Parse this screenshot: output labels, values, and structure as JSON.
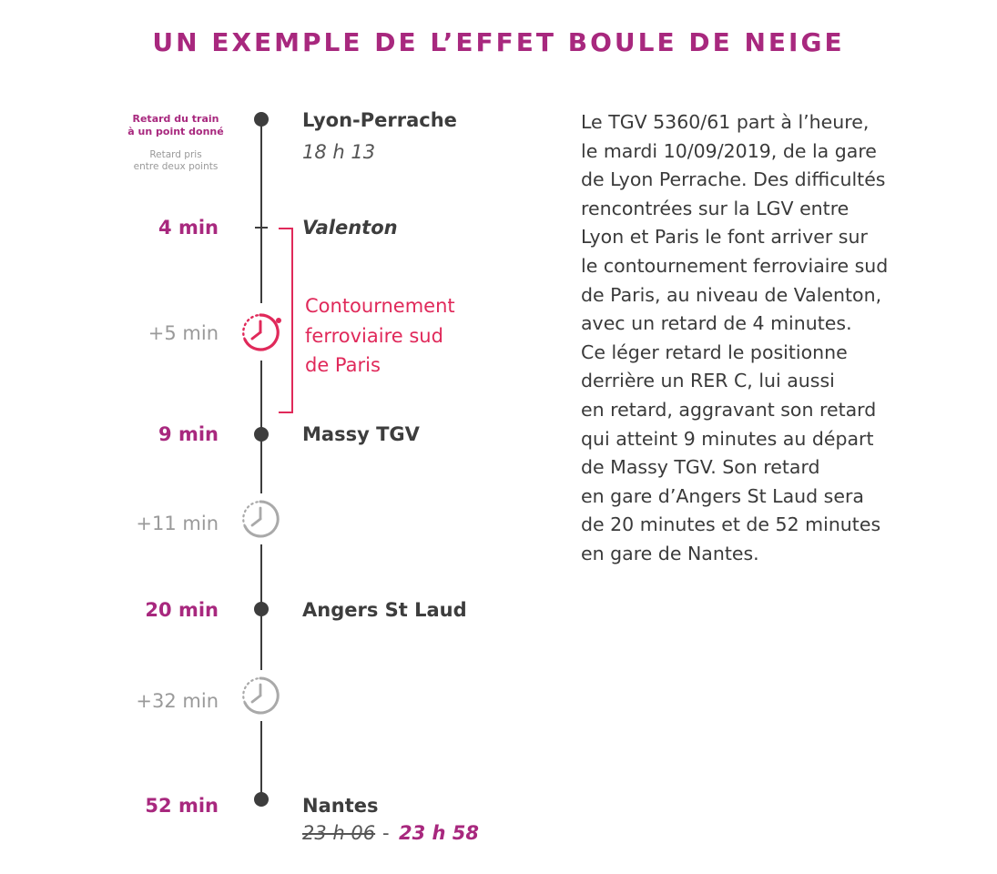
{
  "title": "UN EXEMPLE DE L’EFFET BOULE DE NEIGE",
  "legend": {
    "point_delay_line1": "Retard du train",
    "point_delay_line2": "à un point donné",
    "between_delay_line1": "Retard pris",
    "between_delay_line2": "entre deux points"
  },
  "stops": {
    "lyon": {
      "name": "Lyon-Perrache",
      "time": "18 h 13"
    },
    "valenton": {
      "name": "Valenton",
      "delay": "4 min"
    },
    "segment_paris": {
      "label_line1": "Contournement",
      "label_line2": "ferroviaire sud",
      "label_line3": "de Paris",
      "delay": "+5 min"
    },
    "massy": {
      "name": "Massy TGV",
      "delay": "9 min"
    },
    "segment_angers": {
      "delay": "+11 min"
    },
    "angers": {
      "name": "Angers St Laud",
      "delay": "20 min"
    },
    "segment_nantes": {
      "delay": "+32 min"
    },
    "nantes": {
      "name": "Nantes",
      "delay": "52 min",
      "scheduled": "23 h 06",
      "separator": "-",
      "actual": "23 h 58"
    }
  },
  "paragraph": [
    "Le TGV 5360/61 part à l’heure,",
    "le mardi 10/09/2019, de la gare",
    "de Lyon Perrache. Des difficultés",
    "rencontrées sur la LGV entre",
    "Lyon et Paris le font arriver sur",
    "le contournement ferroviaire sud",
    "de Paris, au niveau de Valenton,",
    "avec un retard de 4 minutes.",
    "Ce léger retard le positionne",
    "derrière un RER C, lui aussi",
    "en retard, aggravant son retard",
    "qui atteint 9 minutes au départ",
    "de Massy TGV. Son retard",
    "en gare d’Angers St Laud sera",
    "de 20 minutes et de 52 minutes",
    "en gare de Nantes."
  ],
  "colors": {
    "accent_purple": "#a8287e",
    "accent_red": "#e0295a",
    "line_dark": "#3d3d3d",
    "muted_grey": "#9a9a9a"
  },
  "icons": {
    "segment_paris": "clock-delay-icon-red",
    "segment_angers": "clock-delay-icon-grey",
    "segment_nantes": "clock-delay-icon-grey"
  }
}
